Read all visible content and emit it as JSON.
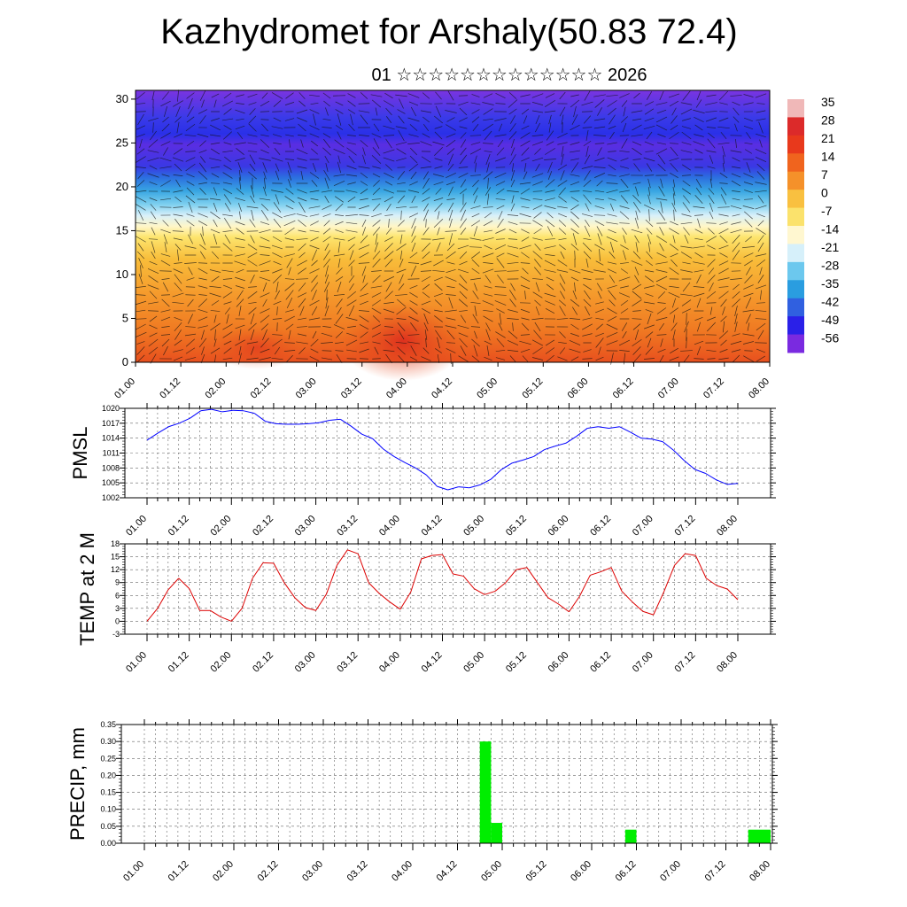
{
  "title": "Kazhydromet for Arshaly(50.83 72.4)",
  "subtitle": "01 ☆☆☆☆☆☆☆☆☆☆☆☆☆ 2026",
  "chart_data": [
    {
      "type": "heatmap",
      "name": "Upper-air temperature and wind cross-section",
      "xlabel": "",
      "ylabel": "",
      "ylim": [
        0,
        31
      ],
      "yticks": [
        "0",
        "5",
        "10",
        "15",
        "20",
        "25",
        "30"
      ],
      "xticks": [
        "01.00",
        "01.12",
        "02.00",
        "02.12",
        "03.00",
        "03.12",
        "04.00",
        "04.12",
        "05.00",
        "05.12",
        "06.00",
        "06.12",
        "07.00",
        "07.12",
        "08.00"
      ],
      "colorbar_labels": [
        "35",
        "28",
        "21",
        "14",
        "7",
        "0",
        "-7",
        "-14",
        "-21",
        "-28",
        "-35",
        "-42",
        "-49",
        "-56"
      ],
      "colorbar_colors": [
        "#f0b8b8",
        "#dc2a2a",
        "#e8391c",
        "#f0641e",
        "#f5912a",
        "#f9c040",
        "#fbe26c",
        "#fff7d0",
        "#d6f0fa",
        "#6cc8ee",
        "#2a9de0",
        "#3060e0",
        "#2a20e8",
        "#7a2ae0"
      ]
    },
    {
      "type": "line",
      "name": "PMSL",
      "ylabel": "PMSL",
      "ylim": [
        1002,
        1020
      ],
      "yticks": [
        "1002",
        "1005",
        "1008",
        "1011",
        "1014",
        "1017",
        "1020"
      ],
      "xticks": [
        "01.00",
        "01.12",
        "02.00",
        "02.12",
        "03.00",
        "03.12",
        "04.00",
        "04.12",
        "05.00",
        "05.12",
        "06.00",
        "06.12",
        "07.00",
        "07.12",
        "08.00"
      ],
      "color": "#0000ff",
      "values": [
        1013.6,
        1015.0,
        1016.3,
        1017.0,
        1018.0,
        1019.5,
        1019.8,
        1019.3,
        1019.6,
        1019.5,
        1019.0,
        1017.4,
        1016.9,
        1016.8,
        1016.8,
        1016.9,
        1017.1,
        1017.6,
        1017.8,
        1016.4,
        1014.8,
        1013.9,
        1011.8,
        1010.3,
        1009.1,
        1008.0,
        1006.6,
        1004.3,
        1003.6,
        1004.2,
        1004.0,
        1004.6,
        1005.7,
        1007.7,
        1009.0,
        1009.6,
        1010.3,
        1011.7,
        1012.4,
        1013.0,
        1014.4,
        1016.0,
        1016.3,
        1016.0,
        1016.3,
        1015.2,
        1014.0,
        1013.8,
        1013.3,
        1011.6,
        1009.5,
        1007.7,
        1006.9,
        1005.6,
        1004.7,
        1004.9
      ]
    },
    {
      "type": "line",
      "name": "TEMP at 2 M",
      "ylabel": "TEMP at 2 M",
      "ylim": [
        -3,
        18
      ],
      "yticks": [
        "-3",
        "0",
        "3",
        "6",
        "9",
        "12",
        "15",
        "18"
      ],
      "xticks": [
        "01.00",
        "01.12",
        "02.00",
        "02.12",
        "03.00",
        "03.12",
        "04.00",
        "04.12",
        "05.00",
        "05.12",
        "06.00",
        "06.12",
        "07.00",
        "07.12",
        "08.00"
      ],
      "color": "#dd0000",
      "values": [
        0.0,
        3.0,
        7.3,
        10.0,
        7.6,
        2.5,
        2.5,
        1.0,
        0.0,
        3.0,
        10.0,
        13.6,
        13.5,
        9.0,
        5.5,
        3.2,
        2.5,
        6.3,
        13.0,
        16.6,
        15.7,
        9.0,
        6.5,
        4.5,
        2.8,
        6.8,
        14.5,
        15.3,
        15.5,
        11.0,
        10.5,
        7.6,
        6.2,
        7.0,
        9.0,
        12.0,
        12.5,
        9.0,
        5.5,
        4.0,
        2.2,
        5.8,
        10.7,
        11.5,
        12.5,
        7.0,
        4.5,
        2.3,
        1.5,
        6.9,
        13.0,
        15.7,
        15.3,
        10.0,
        8.3,
        7.5,
        5.0
      ]
    },
    {
      "type": "bar",
      "name": "PRECIP, mm",
      "ylabel": "PRECIP, mm",
      "ylim": [
        0,
        0.35
      ],
      "yticks": [
        "0.00",
        "0.05",
        "0.10",
        "0.15",
        "0.20",
        "0.25",
        "0.30",
        "0.35"
      ],
      "xticks": [
        "01.00",
        "01.12",
        "02.00",
        "02.12",
        "03.00",
        "03.12",
        "04.00",
        "04.12",
        "05.00",
        "05.12",
        "06.00",
        "06.12",
        "07.00",
        "07.12",
        "08.00"
      ],
      "color": "#00ee00",
      "bars": [
        {
          "t": 3.75,
          "dt": 0.125,
          "value": 0.3
        },
        {
          "t": 3.875,
          "dt": 0.125,
          "value": 0.06
        },
        {
          "t": 5.375,
          "dt": 0.125,
          "value": 0.04
        },
        {
          "t": 6.75,
          "dt": 0.25,
          "value": 0.04
        }
      ]
    }
  ]
}
